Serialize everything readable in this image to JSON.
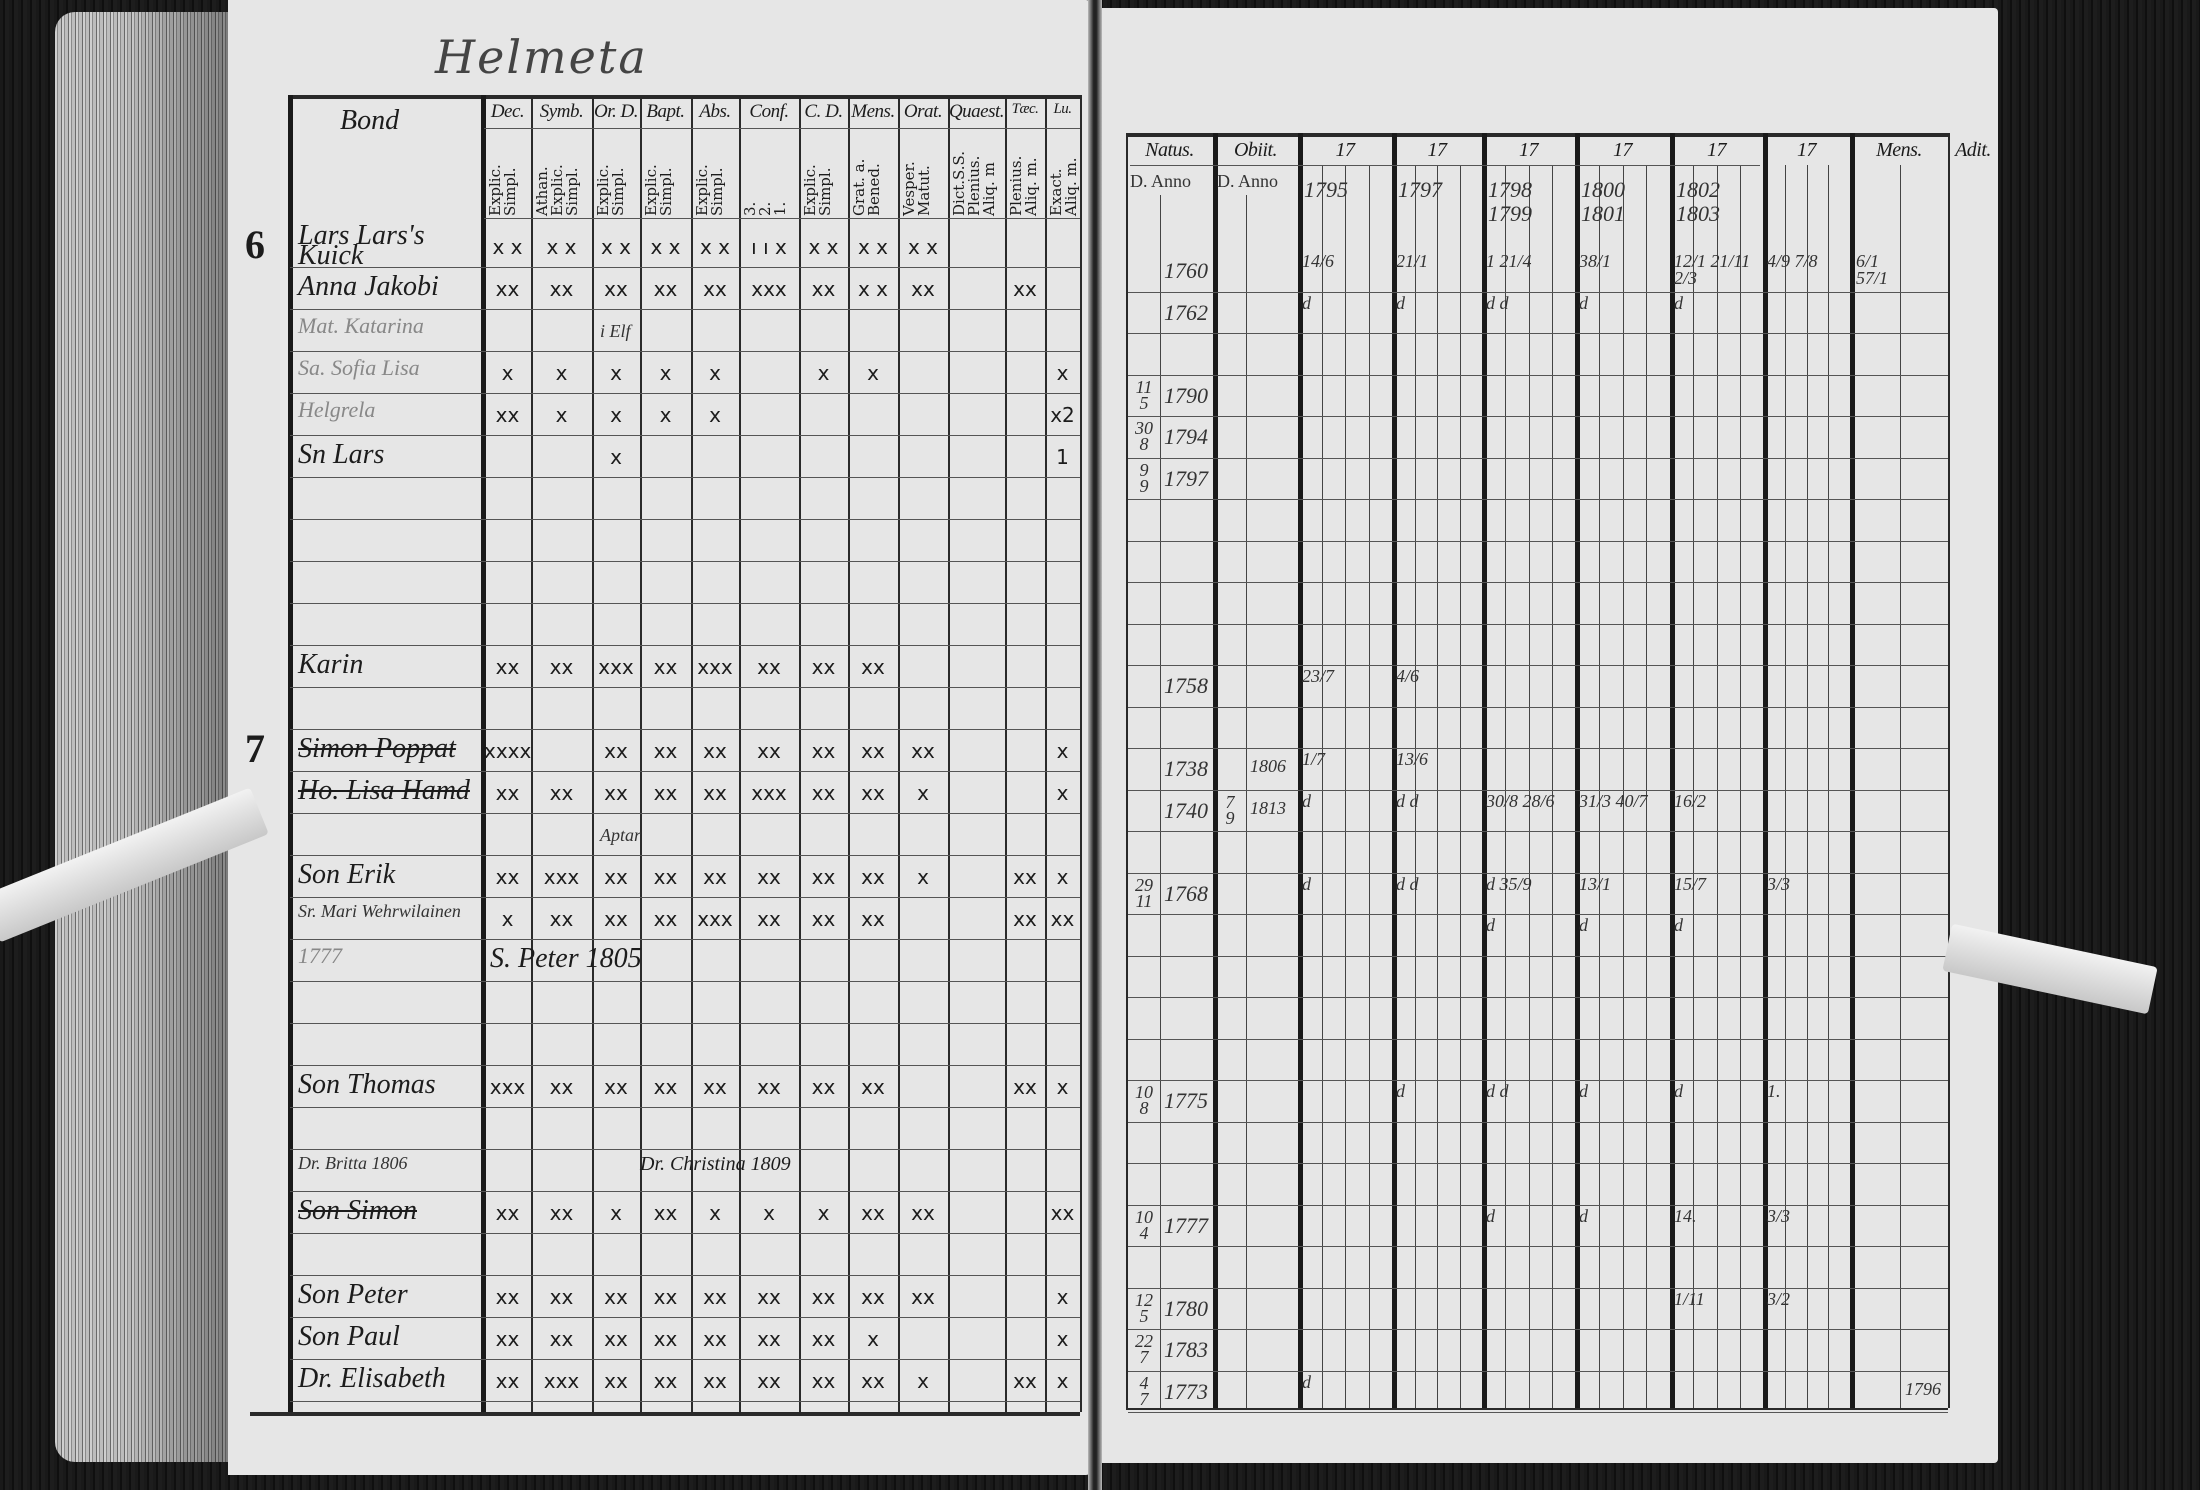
{
  "left_page": {
    "title": "Helmeta",
    "corner_label": "Bond",
    "columns": [
      {
        "label": "Dec.",
        "sub": "Explic.\nSimpl."
      },
      {
        "label": "Symb.",
        "sub": "Athan.\nExplic.\nSimpl."
      },
      {
        "label": "Or. D.",
        "sub": "Explic.\nSimpl."
      },
      {
        "label": "Bapt.",
        "sub": "Explic.\nSimpl."
      },
      {
        "label": "Abs.",
        "sub": "Explic.\nSimpl."
      },
      {
        "label": "Conf.",
        "sub": "3.\n2.\n1."
      },
      {
        "label": "C. D.",
        "sub": "Explic.\nSimpl."
      },
      {
        "label": "Mens.",
        "sub": "Grat. a.\nBened."
      },
      {
        "label": "Orat.",
        "sub": "Vesper.\nMatut."
      },
      {
        "label": "Quaest.",
        "sub": "Dict.S.S.\nPlenius.\nAliq. m"
      },
      {
        "label": "Tæc.",
        "sub": "Plenius.\nAliq. m."
      },
      {
        "label": "Lu.",
        "sub": "Exact.\nAliq. m."
      }
    ],
    "rows": [
      {
        "num": "6",
        "name": "Lars Lars's Kuick",
        "style": "name",
        "marks": [
          "x x",
          "x x",
          "x x",
          "x x",
          "x x",
          "ı ı x",
          "x x",
          "x x",
          "x x",
          "",
          "",
          ""
        ]
      },
      {
        "name": "Anna Jakobi",
        "style": "name",
        "marks": [
          "xx",
          "xx",
          "xx",
          "xx",
          "xx",
          "xxx",
          "xx",
          "x x",
          "xx",
          "",
          "xx",
          ""
        ]
      },
      {
        "name": "Mat. Katarina",
        "style": "faint",
        "marks": [
          "",
          "",
          "",
          "",
          "",
          "",
          "",
          "",
          "",
          "",
          "",
          ""
        ]
      },
      {
        "name": "Sa. Sofia Lisa",
        "style": "faint",
        "note": "i Elf",
        "marks": [
          "x",
          "x",
          "x",
          "x",
          "x",
          "",
          "x",
          "x",
          "",
          "",
          "",
          "x"
        ]
      },
      {
        "name": "Helgrela",
        "style": "faint",
        "marks": [
          "xx",
          "x",
          "x",
          "x",
          "x",
          "",
          "",
          "",
          "",
          "",
          "",
          "x2"
        ]
      },
      {
        "name": "Sn Lars",
        "style": "name",
        "marks": [
          "",
          "",
          "x",
          "",
          "",
          "",
          "",
          "",
          "",
          "",
          "",
          "1"
        ]
      },
      {
        "name": "",
        "marks": []
      },
      {
        "name": "",
        "marks": []
      },
      {
        "name": "",
        "marks": []
      },
      {
        "name": "",
        "marks": []
      },
      {
        "name": "Karin",
        "style": "name",
        "marks": [
          "xx",
          "xx",
          "xxx",
          "xx",
          "xxx",
          "xx",
          "xx",
          "xx",
          "",
          "",
          "",
          ""
        ]
      },
      {
        "name": "",
        "marks": []
      },
      {
        "num": "7",
        "name": "Simon Poppat",
        "style": "name strike",
        "marks": [
          "xxxx",
          "",
          "xx",
          "xx",
          "xx",
          "xx",
          "xx",
          "xx",
          "xx",
          "",
          "",
          "x"
        ]
      },
      {
        "name": "Ho. Lisa Hamd",
        "style": "name strike",
        "marks": [
          "xx",
          "xx",
          "xx",
          "xx",
          "xx",
          "xxx",
          "xx",
          "xx",
          "x",
          "",
          "",
          "x"
        ]
      },
      {
        "name": "",
        "marks": []
      },
      {
        "name": "Son Erik",
        "style": "name",
        "note": "Aptar",
        "marks": [
          "xx",
          "xxx",
          "xx",
          "xx",
          "xx",
          "xx",
          "xx",
          "xx",
          "x",
          "",
          "xx",
          "x"
        ]
      },
      {
        "name": "Sr. Mari Wehrwilainen",
        "style": "small",
        "marks": [
          "x",
          "xx",
          "xx",
          "xx",
          "xxx",
          "xx",
          "xx",
          "xx",
          "",
          "",
          "xx",
          "xx"
        ]
      },
      {
        "name": "1777",
        "style": "faint",
        "extra": "S. Peter 1805",
        "marks": []
      },
      {
        "name": "",
        "marks": []
      },
      {
        "name": "",
        "marks": []
      },
      {
        "name": "Son Thomas",
        "style": "name",
        "marks": [
          "xxx",
          "xx",
          "xx",
          "xx",
          "xx",
          "xx",
          "xx",
          "xx",
          "",
          "",
          "xx",
          "x"
        ]
      },
      {
        "name": "",
        "marks": []
      },
      {
        "name": "Dr. Britta 1806",
        "style": "small",
        "extra": "Dr. Christina 1809",
        "marks": []
      },
      {
        "name": "Son Simon",
        "style": "name strike",
        "marks": [
          "xx",
          "xx",
          "x",
          "xx",
          "x",
          "x",
          "x",
          "xx",
          "xx",
          "",
          "",
          "xx"
        ]
      },
      {
        "name": "",
        "marks": []
      },
      {
        "name": "Son Peter",
        "style": "name",
        "marks": [
          "xx",
          "xx",
          "xx",
          "xx",
          "xx",
          "xx",
          "xx",
          "xx",
          "xx",
          "",
          "",
          "x"
        ]
      },
      {
        "name": "Son Paul",
        "style": "name",
        "marks": [
          "xx",
          "xx",
          "xx",
          "xx",
          "xx",
          "xx",
          "xx",
          "x",
          "",
          "",
          "",
          "x"
        ]
      },
      {
        "name": "Dr. Elisabeth",
        "style": "name",
        "marks": [
          "xx",
          "xxx",
          "xx",
          "xx",
          "xx",
          "xx",
          "xx",
          "xx",
          "x",
          "",
          "xx",
          "x"
        ]
      }
    ]
  },
  "right_page": {
    "headers": [
      "Natus.",
      "Obiit.",
      "17",
      "17",
      "17",
      "17",
      "17",
      "17",
      "Mens.",
      "Adit."
    ],
    "sub_headers": [
      "D. Anno",
      "D. Anno"
    ],
    "years": [
      "1795",
      "1797",
      "1798  1799",
      "1800  1801",
      "1802  1803",
      ""
    ],
    "rows": [
      {
        "natus_day": "",
        "natus_year": "1760",
        "marks": [
          "14/6",
          "21/1",
          "1  21/4",
          "38/1",
          "12/1 21/11 2/3",
          "4/9 7/8"
        ],
        "extra": "6/1  57/1"
      },
      {
        "natus_day": "",
        "natus_year": "1762",
        "marks": [
          "d",
          "d",
          "d d",
          "d",
          "d",
          ""
        ]
      },
      {
        "natus_day": "",
        "natus_year": "",
        "marks": []
      },
      {
        "natus_day": "11/5",
        "natus_year": "1790",
        "marks": []
      },
      {
        "natus_day": "30/8",
        "natus_year": "1794",
        "marks": []
      },
      {
        "natus_day": "9/9",
        "natus_year": "1797",
        "marks": []
      },
      {
        "natus_day": "",
        "natus_year": "",
        "marks": []
      },
      {
        "natus_day": "",
        "natus_year": "",
        "marks": []
      },
      {
        "natus_day": "",
        "natus_year": "",
        "marks": []
      },
      {
        "natus_day": "",
        "natus_year": "",
        "marks": []
      },
      {
        "natus_day": "",
        "natus_year": "1758",
        "marks": [
          "23/7",
          "4/6",
          "",
          "",
          "",
          ""
        ]
      },
      {
        "natus_day": "",
        "natus_year": "",
        "marks": []
      },
      {
        "natus_day": "",
        "natus_year": "1738",
        "obiit": "1806",
        "marks": [
          "1/7",
          "13/6",
          "",
          "",
          "",
          ""
        ]
      },
      {
        "natus_day": "",
        "natus_year": "1740",
        "obiit_day": "7/9",
        "obiit": "1813",
        "marks": [
          "d",
          "d d",
          "30/8 28/6",
          "31/3 40/7",
          "16/2",
          ""
        ]
      },
      {
        "natus_day": "",
        "natus_year": "",
        "marks": []
      },
      {
        "natus_day": "29/11",
        "natus_year": "1768",
        "marks": [
          "d",
          "d d",
          "d 35/9",
          "13/1",
          "15/7",
          "3/3"
        ]
      },
      {
        "natus_day": "",
        "natus_year": "",
        "marks": [
          "",
          "",
          "d",
          "d",
          "d",
          ""
        ]
      },
      {
        "natus_day": "",
        "natus_year": "",
        "marks": []
      },
      {
        "natus_day": "",
        "natus_year": "",
        "marks": []
      },
      {
        "natus_day": "",
        "natus_year": "",
        "marks": []
      },
      {
        "natus_day": "10/8",
        "natus_year": "1775",
        "marks": [
          "",
          "d",
          "d d",
          "d",
          "d",
          "1."
        ]
      },
      {
        "natus_day": "",
        "natus_year": "",
        "marks": []
      },
      {
        "natus_day": "",
        "natus_year": "",
        "marks": []
      },
      {
        "natus_day": "10/4",
        "natus_year": "1777",
        "marks": [
          "",
          "",
          "d",
          "d",
          "14.",
          "3/3"
        ]
      },
      {
        "natus_day": "",
        "natus_year": "",
        "marks": []
      },
      {
        "natus_day": "12/5",
        "natus_year": "1780",
        "marks": [
          "",
          "",
          "",
          "",
          "1/11",
          "3/2"
        ]
      },
      {
        "natus_day": "22/7",
        "natus_year": "1783",
        "marks": []
      },
      {
        "natus_day": "4/7",
        "natus_year": "1773",
        "marks": [
          "d",
          "",
          "",
          "",
          "",
          ""
        ],
        "adit": "1796"
      }
    ]
  }
}
